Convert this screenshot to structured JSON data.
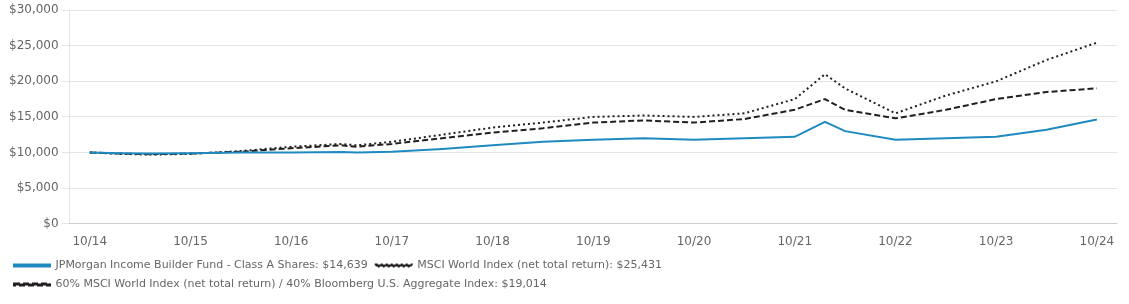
{
  "chart_data": {
    "type": "line",
    "x": [
      0,
      0.3,
      0.6,
      1.0,
      1.5,
      2.0,
      2.5,
      2.65,
      3.0,
      3.5,
      4.0,
      4.5,
      5.0,
      5.5,
      6.0,
      6.5,
      7.0,
      7.3,
      7.5,
      8.0,
      8.5,
      9.0,
      9.5,
      10.0
    ],
    "xlim": [
      -0.2,
      10.2
    ],
    "xticks": [
      {
        "value": 0,
        "label": "10/14"
      },
      {
        "value": 1,
        "label": "10/15"
      },
      {
        "value": 2,
        "label": "10/16"
      },
      {
        "value": 3,
        "label": "10/17"
      },
      {
        "value": 4,
        "label": "10/18"
      },
      {
        "value": 5,
        "label": "10/19"
      },
      {
        "value": 6,
        "label": "10/20"
      },
      {
        "value": 7,
        "label": "10/21"
      },
      {
        "value": 8,
        "label": "10/22"
      },
      {
        "value": 9,
        "label": "10/23"
      },
      {
        "value": 10,
        "label": "10/24"
      }
    ],
    "ylim": [
      0,
      30000
    ],
    "yticks": [
      {
        "value": 0,
        "label": "$0"
      },
      {
        "value": 5000,
        "label": "$5,000"
      },
      {
        "value": 10000,
        "label": "$10,000"
      },
      {
        "value": 15000,
        "label": "$15,000"
      },
      {
        "value": 20000,
        "label": "$20,000"
      },
      {
        "value": 25000,
        "label": "$25,000"
      },
      {
        "value": 30000,
        "label": "$30,000"
      }
    ],
    "grid": "y",
    "legend": "bottom",
    "series": [
      {
        "name": "JPMorgan Income Builder Fund - Class A Shares: $14,639",
        "color": "#1f8ac0",
        "line_style": "solid",
        "values": [
          10000,
          9900,
          9850,
          9900,
          10000,
          10000,
          10050,
          10000,
          10100,
          10500,
          11000,
          11500,
          11800,
          12000,
          11800,
          12000,
          12200,
          14300,
          13000,
          11800,
          12000,
          12200,
          13200,
          14639
        ]
      },
      {
        "name": "MSCI World Index (net total return): $25,431",
        "color": "#231f20",
        "line_style": "dotted",
        "values": [
          10000,
          9800,
          9700,
          9800,
          10200,
          10800,
          11200,
          11000,
          11500,
          12500,
          13500,
          14200,
          15000,
          15200,
          15000,
          15500,
          17500,
          21000,
          19000,
          15500,
          18000,
          20000,
          23000,
          25431
        ]
      },
      {
        "name": "60% MSCI World Index (net total return) / 40% Bloomberg U.S. Aggregate Index: $19,014",
        "color": "#231f20",
        "line_style": "dashed",
        "values": [
          10000,
          9850,
          9750,
          9850,
          10100,
          10600,
          11000,
          10800,
          11200,
          12000,
          12800,
          13400,
          14200,
          14500,
          14200,
          14700,
          16000,
          17500,
          16000,
          14800,
          16000,
          17500,
          18500,
          19014
        ]
      }
    ]
  }
}
